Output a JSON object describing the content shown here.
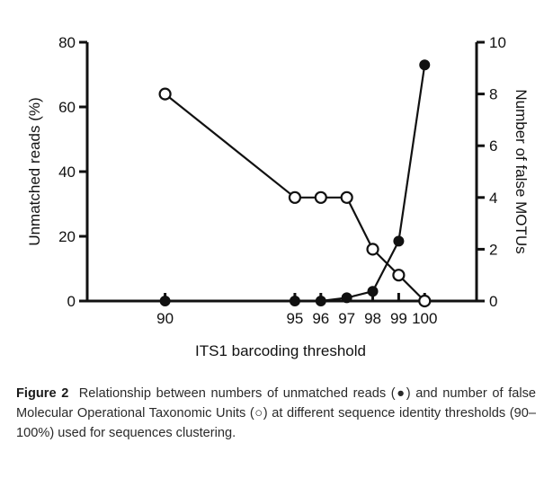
{
  "chart_data": {
    "type": "line",
    "xlabel": "ITS1 barcoding threshold",
    "ylabel_left": "Unmatched reads (%)",
    "ylabel_right": "Number of false MOTUs",
    "ylim_left": [
      0,
      80
    ],
    "ylim_right": [
      0,
      10
    ],
    "xlim": [
      87,
      102
    ],
    "x_ticks": [
      90,
      95,
      96,
      97,
      98,
      99,
      100
    ],
    "y_ticks_left": [
      0,
      20,
      40,
      60,
      80
    ],
    "y_ticks_right": [
      0,
      2,
      4,
      6,
      8,
      10
    ],
    "grid": false,
    "series": [
      {
        "marker": "filled-circle",
        "axis": "left",
        "x": [
          90,
          95,
          96,
          97,
          98,
          99,
          100
        ],
        "values": [
          0,
          0,
          0,
          1,
          3,
          18.5,
          73
        ]
      },
      {
        "marker": "open-circle",
        "axis": "right",
        "x": [
          90,
          95,
          96,
          97,
          98,
          99,
          100
        ],
        "values": [
          8,
          4,
          4,
          4,
          2,
          1,
          0
        ]
      }
    ]
  },
  "caption": {
    "label": "Figure 2",
    "text": "Relationship between numbers of unmatched reads (●) and number of false Molecular Operational Taxonomic Units (○) at different sequence identity thresholds (90–100%) used for sequences clustering."
  }
}
